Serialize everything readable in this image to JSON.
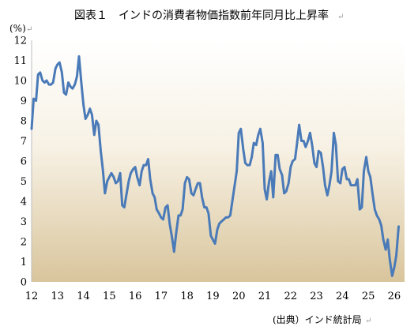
{
  "chart_data": {
    "type": "line",
    "title": "図表１　インドの消費者物価指数前年同月比上昇率",
    "ylabel": "(%)",
    "xlabel": "",
    "source": "(出典）インド統計局",
    "ylim": [
      0,
      12
    ],
    "xlim": [
      12,
      26.4
    ],
    "yticks": [
      "0",
      "1",
      "2",
      "3",
      "4",
      "5",
      "6",
      "7",
      "8",
      "9",
      "10",
      "11",
      "12"
    ],
    "xticks": [
      "12",
      "13",
      "14",
      "15",
      "16",
      "17",
      "18",
      "19",
      "20",
      "21",
      "22",
      "23",
      "24",
      "25",
      "26"
    ],
    "grid": false,
    "background": "gradient white-to-tan",
    "series": [
      {
        "color": "#4a7ab8",
        "points": [
          [
            12.0,
            7.6
          ],
          [
            12.08,
            9.1
          ],
          [
            12.17,
            9.0
          ],
          [
            12.25,
            10.3
          ],
          [
            12.33,
            10.4
          ],
          [
            12.42,
            10.0
          ],
          [
            12.5,
            9.9
          ],
          [
            12.58,
            10.0
          ],
          [
            12.67,
            9.8
          ],
          [
            12.75,
            9.8
          ],
          [
            12.83,
            9.9
          ],
          [
            12.92,
            10.6
          ],
          [
            13.0,
            10.8
          ],
          [
            13.08,
            10.9
          ],
          [
            13.17,
            10.4
          ],
          [
            13.25,
            9.4
          ],
          [
            13.33,
            9.3
          ],
          [
            13.42,
            9.9
          ],
          [
            13.5,
            9.7
          ],
          [
            13.58,
            9.6
          ],
          [
            13.67,
            9.8
          ],
          [
            13.75,
            10.2
          ],
          [
            13.83,
            11.2
          ],
          [
            13.92,
            9.9
          ],
          [
            14.0,
            8.8
          ],
          [
            14.08,
            8.1
          ],
          [
            14.17,
            8.3
          ],
          [
            14.25,
            8.6
          ],
          [
            14.33,
            8.3
          ],
          [
            14.42,
            7.3
          ],
          [
            14.5,
            8.0
          ],
          [
            14.58,
            7.8
          ],
          [
            14.67,
            6.5
          ],
          [
            14.75,
            5.6
          ],
          [
            14.83,
            4.4
          ],
          [
            14.92,
            5.0
          ],
          [
            15.0,
            5.2
          ],
          [
            15.08,
            5.4
          ],
          [
            15.17,
            5.2
          ],
          [
            15.25,
            4.9
          ],
          [
            15.33,
            5.0
          ],
          [
            15.42,
            5.4
          ],
          [
            15.5,
            3.8
          ],
          [
            15.58,
            3.7
          ],
          [
            15.67,
            4.4
          ],
          [
            15.75,
            5.0
          ],
          [
            15.83,
            5.4
          ],
          [
            15.92,
            5.6
          ],
          [
            16.0,
            5.7
          ],
          [
            16.08,
            5.2
          ],
          [
            16.17,
            4.8
          ],
          [
            16.25,
            5.5
          ],
          [
            16.33,
            5.8
          ],
          [
            16.42,
            5.8
          ],
          [
            16.5,
            6.1
          ],
          [
            16.58,
            5.1
          ],
          [
            16.67,
            4.4
          ],
          [
            16.75,
            4.2
          ],
          [
            16.83,
            3.6
          ],
          [
            16.92,
            3.4
          ],
          [
            17.0,
            3.2
          ],
          [
            17.08,
            3.1
          ],
          [
            17.17,
            3.7
          ],
          [
            17.25,
            3.8
          ],
          [
            17.33,
            2.9
          ],
          [
            17.42,
            2.2
          ],
          [
            17.5,
            1.5
          ],
          [
            17.58,
            2.4
          ],
          [
            17.67,
            3.3
          ],
          [
            17.75,
            3.3
          ],
          [
            17.83,
            3.6
          ],
          [
            17.92,
            4.9
          ],
          [
            18.0,
            5.2
          ],
          [
            18.08,
            5.1
          ],
          [
            18.17,
            4.4
          ],
          [
            18.25,
            4.3
          ],
          [
            18.33,
            4.6
          ],
          [
            18.42,
            4.9
          ],
          [
            18.5,
            4.9
          ],
          [
            18.58,
            4.2
          ],
          [
            18.67,
            3.7
          ],
          [
            18.75,
            3.7
          ],
          [
            18.83,
            3.4
          ],
          [
            18.92,
            2.3
          ],
          [
            19.0,
            2.1
          ],
          [
            19.08,
            1.9
          ],
          [
            19.17,
            2.6
          ],
          [
            19.25,
            2.9
          ],
          [
            19.33,
            3.0
          ],
          [
            19.42,
            3.1
          ],
          [
            19.5,
            3.2
          ],
          [
            19.58,
            3.2
          ],
          [
            19.67,
            3.3
          ],
          [
            19.75,
            4.0
          ],
          [
            19.83,
            4.7
          ],
          [
            19.92,
            5.5
          ],
          [
            20.0,
            7.4
          ],
          [
            20.08,
            7.6
          ],
          [
            20.17,
            6.6
          ],
          [
            20.25,
            5.9
          ],
          [
            20.33,
            5.8
          ],
          [
            20.42,
            5.8
          ],
          [
            20.5,
            6.2
          ],
          [
            20.58,
            6.9
          ],
          [
            20.67,
            6.8
          ],
          [
            20.75,
            7.3
          ],
          [
            20.83,
            7.6
          ],
          [
            20.92,
            6.9
          ],
          [
            21.0,
            4.6
          ],
          [
            21.08,
            4.1
          ],
          [
            21.17,
            5.0
          ],
          [
            21.25,
            5.5
          ],
          [
            21.33,
            4.2
          ],
          [
            21.42,
            6.3
          ],
          [
            21.5,
            6.3
          ],
          [
            21.58,
            5.6
          ],
          [
            21.67,
            5.3
          ],
          [
            21.75,
            4.4
          ],
          [
            21.83,
            4.5
          ],
          [
            21.92,
            4.9
          ],
          [
            22.0,
            5.7
          ],
          [
            22.08,
            6.0
          ],
          [
            22.17,
            6.1
          ],
          [
            22.25,
            6.9
          ],
          [
            22.33,
            7.8
          ],
          [
            22.42,
            7.0
          ],
          [
            22.5,
            7.0
          ],
          [
            22.58,
            6.7
          ],
          [
            22.67,
            7.0
          ],
          [
            22.75,
            7.4
          ],
          [
            22.83,
            6.8
          ],
          [
            22.92,
            5.9
          ],
          [
            23.0,
            5.7
          ],
          [
            23.08,
            6.5
          ],
          [
            23.17,
            6.4
          ],
          [
            23.25,
            5.7
          ],
          [
            23.33,
            4.8
          ],
          [
            23.42,
            4.3
          ],
          [
            23.5,
            4.8
          ],
          [
            23.58,
            5.5
          ],
          [
            23.67,
            7.4
          ],
          [
            23.75,
            6.8
          ],
          [
            23.83,
            5.0
          ],
          [
            23.92,
            4.9
          ],
          [
            24.0,
            5.6
          ],
          [
            24.08,
            5.7
          ],
          [
            24.17,
            5.1
          ],
          [
            24.25,
            5.1
          ],
          [
            24.33,
            4.8
          ],
          [
            24.42,
            4.8
          ],
          [
            24.5,
            4.8
          ],
          [
            24.58,
            5.1
          ],
          [
            24.67,
            3.6
          ],
          [
            24.75,
            3.7
          ],
          [
            24.83,
            5.5
          ],
          [
            24.92,
            6.2
          ],
          [
            25.0,
            5.5
          ],
          [
            25.08,
            5.2
          ],
          [
            25.17,
            4.3
          ],
          [
            25.25,
            3.6
          ],
          [
            25.33,
            3.3
          ],
          [
            25.42,
            3.1
          ],
          [
            25.5,
            2.8
          ],
          [
            25.58,
            2.1
          ],
          [
            25.67,
            1.6
          ],
          [
            25.75,
            2.1
          ],
          [
            25.83,
            1.1
          ],
          [
            25.92,
            0.3
          ],
          [
            26.0,
            0.7
          ],
          [
            26.08,
            1.3
          ],
          [
            26.17,
            2.75
          ]
        ]
      }
    ]
  }
}
